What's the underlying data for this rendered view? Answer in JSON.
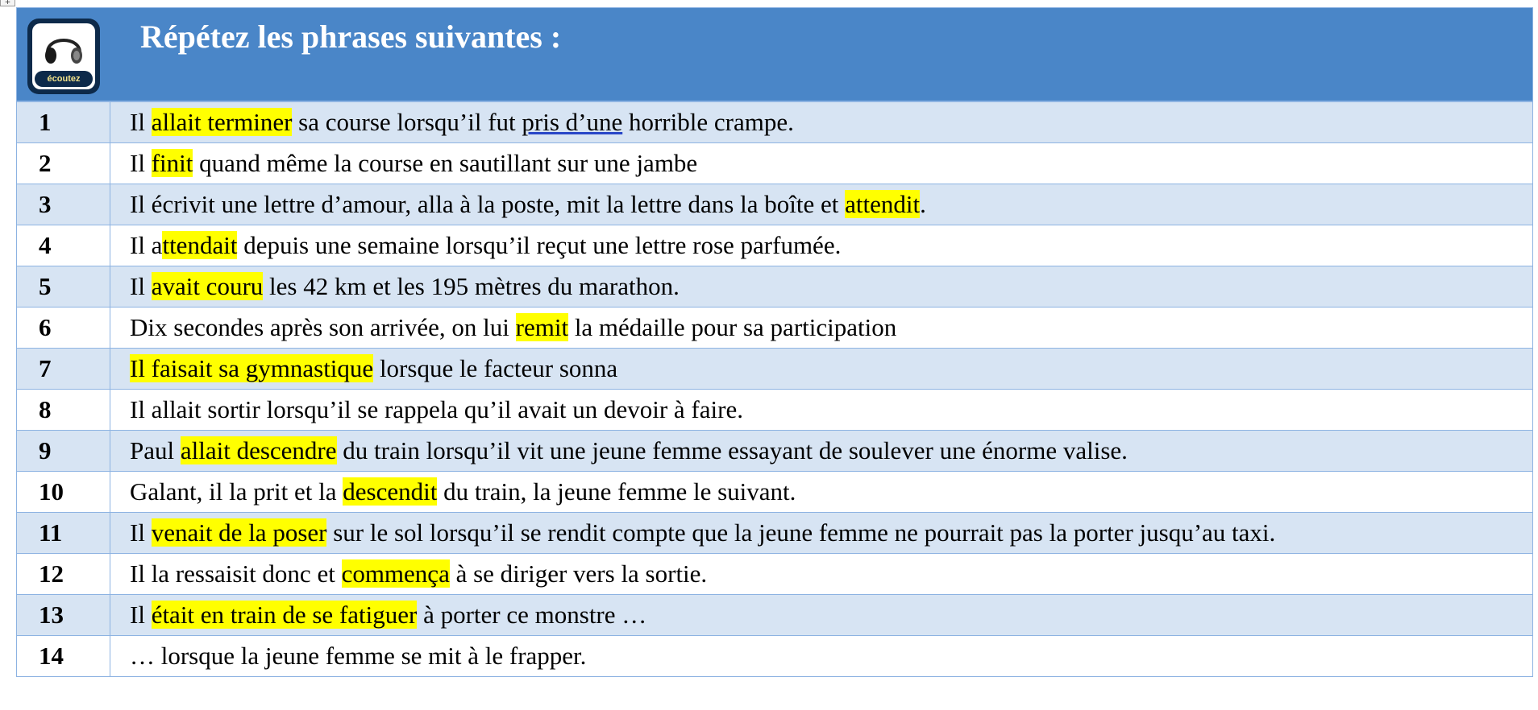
{
  "header": {
    "title": "Répétez les phrases suivantes :",
    "icon_label": "écoutez",
    "icon": "headphones-icon"
  },
  "colors": {
    "header_bg": "#4a86c8",
    "row_alt": "#d7e4f3",
    "highlight": "#ffff00",
    "border": "#8db3e2"
  },
  "rows": [
    {
      "num": "1",
      "segments": [
        {
          "t": "Il "
        },
        {
          "t": "allait terminer",
          "hl": true
        },
        {
          "t": " sa course lorsqu’il fut "
        },
        {
          "t": "pris  d’une",
          "ul": true
        },
        {
          "t": " horrible crampe."
        }
      ]
    },
    {
      "num": "2",
      "segments": [
        {
          "t": "Il "
        },
        {
          "t": "finit",
          "hl": true
        },
        {
          "t": " quand même la course en sautillant sur une jambe"
        }
      ]
    },
    {
      "num": "3",
      "segments": [
        {
          "t": "Il écrivit une lettre d’amour, alla à la poste, mit la lettre dans la boîte et "
        },
        {
          "t": "attendit",
          "hl": true
        },
        {
          "t": "."
        }
      ]
    },
    {
      "num": "4",
      "segments": [
        {
          "t": " Il a"
        },
        {
          "t": "ttendait",
          "hl": true
        },
        {
          "t": " depuis une semaine lorsqu’il reçut une lettre rose parfumée."
        }
      ]
    },
    {
      "num": "5",
      "segments": [
        {
          "t": "Il "
        },
        {
          "t": "avait couru",
          "hl": true
        },
        {
          "t": " les 42 km et les 195 mètres du marathon."
        }
      ]
    },
    {
      "num": "6",
      "segments": [
        {
          "t": "Dix secondes après son arrivée, on lui "
        },
        {
          "t": "remit",
          "hl": true
        },
        {
          "t": " la médaille pour sa participation"
        }
      ]
    },
    {
      "num": "7",
      "segments": [
        {
          "t": " Il faisait sa gymnastique",
          "hl": true
        },
        {
          "t": " lorsque le facteur sonna"
        }
      ]
    },
    {
      "num": "8",
      "segments": [
        {
          "t": "Il allait sortir lorsqu’il se rappela qu’il avait un devoir à faire."
        }
      ]
    },
    {
      "num": "9",
      "segments": [
        {
          "t": "Paul "
        },
        {
          "t": "allait descendre",
          "hl": true
        },
        {
          "t": " du train lorsqu’il vit une jeune femme essayant de soulever une énorme valise."
        }
      ]
    },
    {
      "num": "10",
      "segments": [
        {
          "t": "Galant, il la prit et la "
        },
        {
          "t": "descendit",
          "hl": true
        },
        {
          "t": " du train, la jeune femme le suivant."
        }
      ]
    },
    {
      "num": "11",
      "segments": [
        {
          "t": "Il "
        },
        {
          "t": "venait de la poser",
          "hl": true
        },
        {
          "t": " sur le sol lorsqu’il se rendit compte que la jeune femme ne pourrait pas la porter jusqu’au taxi."
        }
      ]
    },
    {
      "num": "12",
      "segments": [
        {
          "t": "Il la ressaisit donc et "
        },
        {
          "t": "commença",
          "hl": true
        },
        {
          "t": " à se diriger vers la sortie."
        }
      ]
    },
    {
      "num": "13",
      "segments": [
        {
          "t": "Il "
        },
        {
          "t": "était en train de se fatiguer",
          "hl": true
        },
        {
          "t": " à porter ce monstre …"
        }
      ]
    },
    {
      "num": "14",
      "segments": [
        {
          "t": "… lorsque la jeune femme se mit à le frapper."
        }
      ]
    }
  ]
}
